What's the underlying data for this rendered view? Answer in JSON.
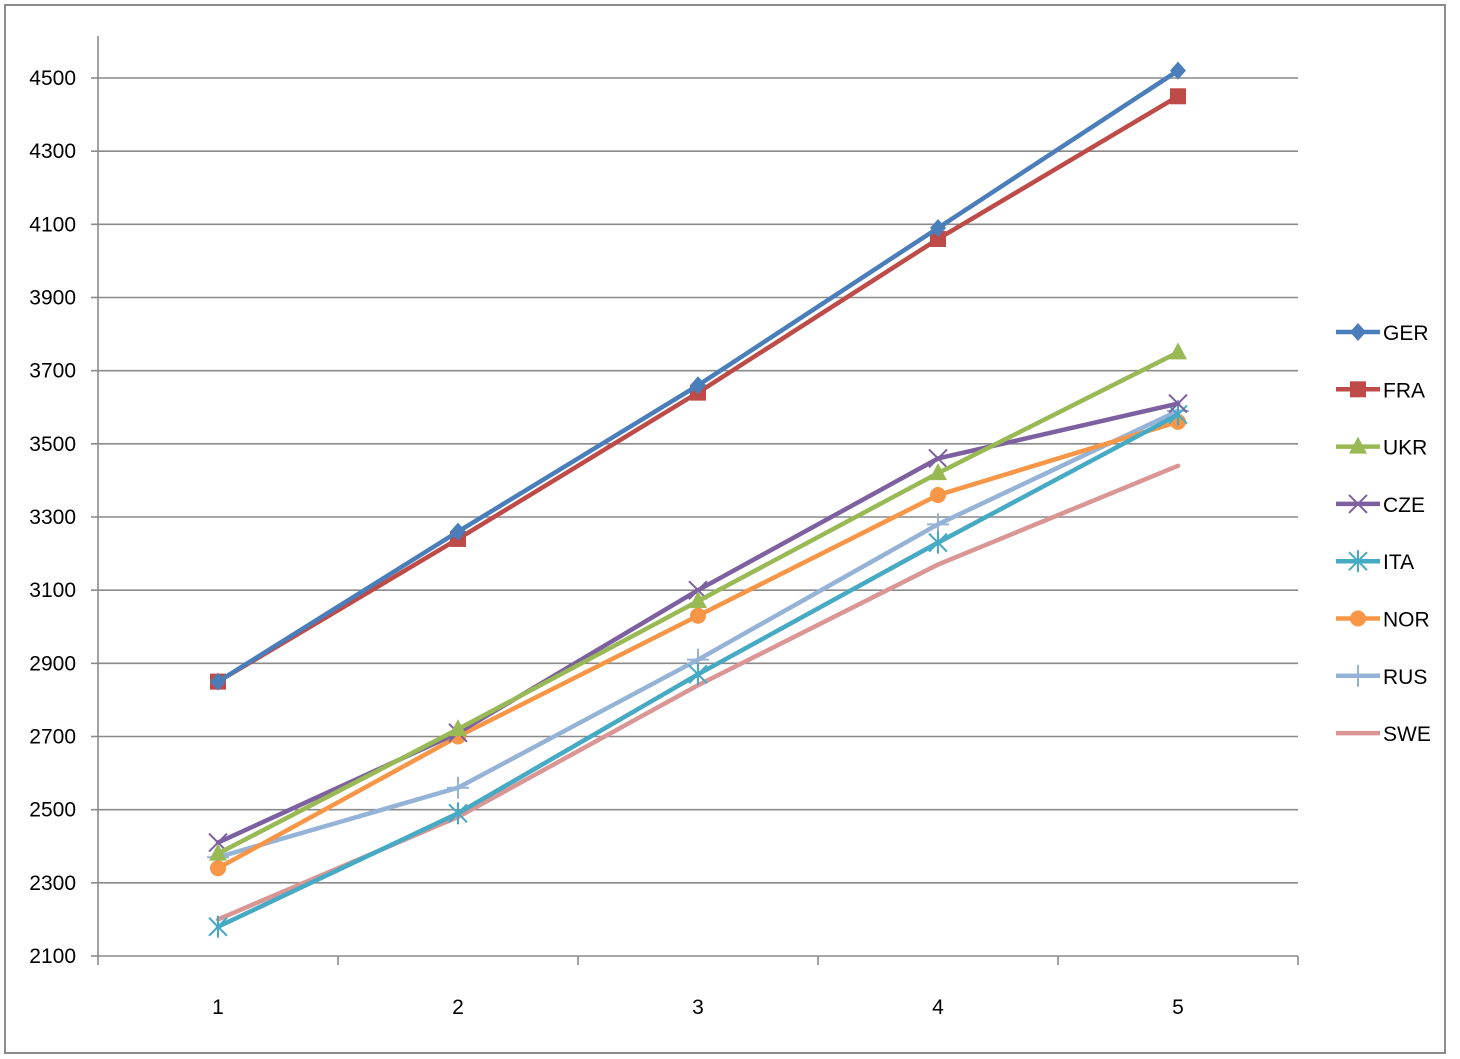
{
  "chart_data": {
    "type": "line",
    "title": "",
    "xlabel": "",
    "ylabel": "",
    "x": [
      1,
      2,
      3,
      4,
      5
    ],
    "ylim": [
      2100,
      4600
    ],
    "yticks": [
      2100,
      2300,
      2500,
      2700,
      2900,
      3100,
      3300,
      3500,
      3700,
      3900,
      4100,
      4300,
      4500
    ],
    "grid": "horizontal",
    "legend_position": "right",
    "series": [
      {
        "name": "GER",
        "color": "#4a7ebb",
        "marker": "diamond",
        "values": [
          2850,
          3260,
          3660,
          4090,
          4520
        ]
      },
      {
        "name": "FRA",
        "color": "#be4b48",
        "marker": "square",
        "values": [
          2850,
          3240,
          3640,
          4060,
          4450
        ]
      },
      {
        "name": "UKR",
        "color": "#98b954",
        "marker": "triangle",
        "values": [
          2380,
          2720,
          3070,
          3420,
          3750
        ]
      },
      {
        "name": "CZE",
        "color": "#7d60a0",
        "marker": "x",
        "values": [
          2410,
          2710,
          3100,
          3460,
          3610
        ]
      },
      {
        "name": "ITA",
        "color": "#46aac5",
        "marker": "star",
        "values": [
          2180,
          2490,
          2870,
          3230,
          3580
        ]
      },
      {
        "name": "NOR",
        "color": "#f79646",
        "marker": "circle",
        "values": [
          2340,
          2700,
          3030,
          3360,
          3560
        ]
      },
      {
        "name": "RUS",
        "color": "#95b3d7",
        "marker": "plus",
        "values": [
          2370,
          2560,
          2910,
          3280,
          3590
        ]
      },
      {
        "name": "SWE",
        "color": "#d99694",
        "marker": "none",
        "values": [
          2200,
          2480,
          2840,
          3170,
          3440
        ]
      }
    ]
  }
}
